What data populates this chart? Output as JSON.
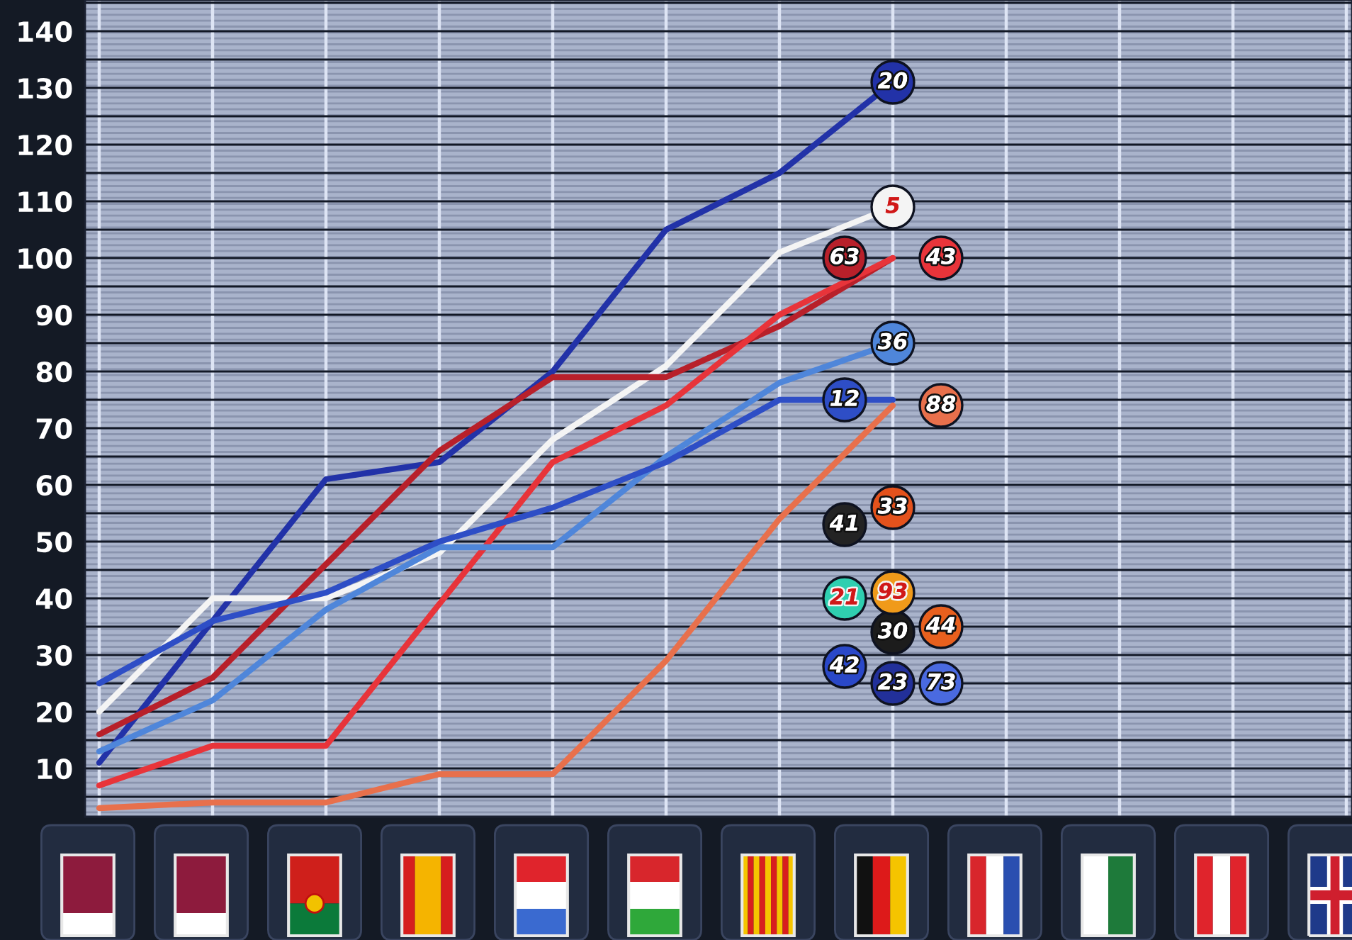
{
  "chart_data": {
    "type": "line",
    "categories": [
      null,
      null,
      null,
      null,
      null,
      null,
      null,
      null,
      null,
      null,
      null,
      null
    ],
    "ylim": [
      1.5,
      145.5
    ],
    "yticks": [
      {
        "value": 5,
        "label": null
      },
      10,
      {
        "value": 15,
        "label": null
      },
      20,
      {
        "value": 25,
        "label": null
      },
      30,
      {
        "value": 35,
        "label": null
      },
      40,
      {
        "value": 45,
        "label": null
      },
      50,
      {
        "value": 55,
        "label": null
      },
      60,
      {
        "value": 65,
        "label": null
      },
      70,
      {
        "value": 75,
        "label": null
      },
      80,
      {
        "value": 85,
        "label": null
      },
      90,
      {
        "value": 95,
        "label": null
      },
      100,
      {
        "value": 105,
        "label": null
      },
      110,
      {
        "value": 115,
        "label": null
      },
      120,
      {
        "value": 125,
        "label": null
      },
      130,
      {
        "value": 135,
        "label": null
      },
      140,
      {
        "value": 145,
        "label": null
      }
    ],
    "grid": true,
    "tick_labels": "y",
    "series": [
      {
        "name": "20",
        "color": "#2232a8",
        "values": [
          11,
          36,
          61,
          64,
          80,
          105,
          115,
          131,
          null,
          null,
          null,
          null
        ]
      },
      {
        "name": "5",
        "color": "#f4f4f4",
        "values": [
          20,
          40,
          40,
          48,
          68,
          81,
          101,
          109,
          null,
          null,
          null,
          null
        ]
      },
      {
        "name": "63",
        "color": "#b8202a",
        "values": [
          16,
          26,
          46,
          66,
          79,
          79,
          88,
          100,
          null,
          null,
          null,
          null
        ]
      },
      {
        "name": "43",
        "color": "#e8343a",
        "values": [
          7,
          14,
          14,
          39,
          64,
          74,
          90,
          100,
          null,
          null,
          null,
          null
        ]
      },
      {
        "name": "36",
        "color": "#4f86da",
        "values": [
          13,
          22,
          38,
          49,
          49,
          65,
          78,
          85,
          null,
          null,
          null,
          null
        ]
      },
      {
        "name": "12",
        "color": "#2e4ec6",
        "values": [
          25,
          36,
          41,
          50,
          56,
          64,
          75,
          75,
          null,
          null,
          null,
          null
        ]
      },
      {
        "name": "88",
        "color": "#e8704c",
        "values": [
          3,
          4,
          4,
          9,
          9,
          29,
          54,
          74,
          null,
          null,
          null,
          null
        ]
      },
      {
        "type": "scatter",
        "name": "33",
        "color": "#e4521c",
        "values": [
          null,
          null,
          null,
          null,
          null,
          null,
          null,
          56,
          null,
          null,
          null,
          null
        ]
      },
      {
        "type": "scatter",
        "name": "41",
        "color": "#232323",
        "values": [
          null,
          null,
          null,
          null,
          null,
          null,
          null,
          53,
          null,
          null,
          null,
          null
        ]
      },
      {
        "type": "scatter",
        "name": "93",
        "color": "#f09a1a",
        "values": [
          null,
          null,
          null,
          null,
          null,
          null,
          null,
          41,
          null,
          null,
          null,
          null
        ]
      },
      {
        "type": "scatter",
        "name": "21",
        "color": "#2fcfb0",
        "values": [
          null,
          null,
          null,
          null,
          null,
          null,
          null,
          40,
          null,
          null,
          null,
          null
        ]
      },
      {
        "type": "scatter",
        "name": "44",
        "color": "#e8601e",
        "values": [
          null,
          null,
          null,
          null,
          null,
          null,
          null,
          35,
          null,
          null,
          null,
          null
        ]
      },
      {
        "type": "scatter",
        "name": "30",
        "color": "#1c1c1c",
        "values": [
          null,
          null,
          null,
          null,
          null,
          null,
          null,
          34,
          null,
          null,
          null,
          null
        ]
      },
      {
        "type": "scatter",
        "name": "42",
        "color": "#2a48c8",
        "values": [
          null,
          null,
          null,
          null,
          null,
          null,
          null,
          28,
          null,
          null,
          null,
          null
        ]
      },
      {
        "type": "scatter",
        "name": "23",
        "color": "#22309a",
        "values": [
          null,
          null,
          null,
          null,
          null,
          null,
          null,
          25,
          null,
          null,
          null,
          null
        ]
      },
      {
        "type": "scatter",
        "name": "73",
        "color": "#4a6ae0",
        "values": [
          null,
          null,
          null,
          null,
          null,
          null,
          null,
          25,
          null,
          null,
          null,
          null
        ]
      }
    ]
  }
}
